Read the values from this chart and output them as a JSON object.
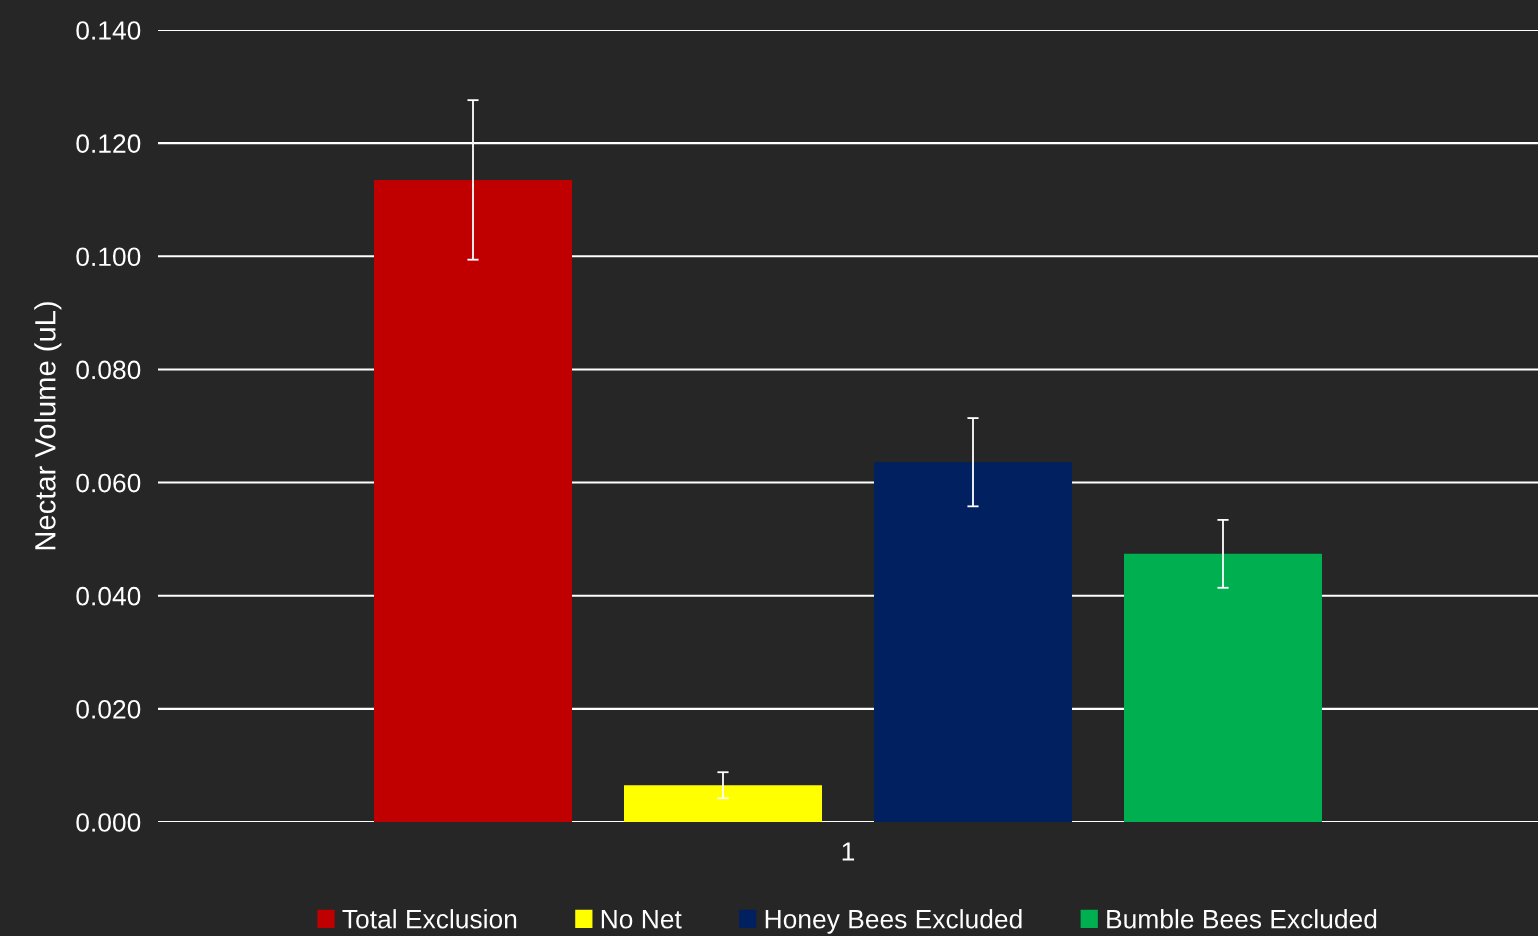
{
  "chart_data": {
    "type": "bar",
    "ylabel": "Nectar Volume (uL)",
    "categories": [
      "1"
    ],
    "series": [
      {
        "name": "Total Exclusion",
        "color": "#c00000",
        "values": [
          0.1135
        ],
        "errors": [
          0.0141
        ]
      },
      {
        "name": "No Net",
        "color": "#ffff00",
        "values": [
          0.0065
        ],
        "errors": [
          0.0023
        ]
      },
      {
        "name": "Honey Bees Excluded",
        "color": "#002060",
        "values": [
          0.0636
        ],
        "errors": [
          0.0078
        ]
      },
      {
        "name": "Bumble Bees Excluded",
        "color": "#00b050",
        "values": [
          0.0474
        ],
        "errors": [
          0.006
        ]
      }
    ],
    "ylim": [
      0,
      0.14
    ],
    "yticks": [
      {
        "value": 0,
        "label": "0.000"
      },
      {
        "value": 0.02,
        "label": "0.020"
      },
      {
        "value": 0.04,
        "label": "0.040"
      },
      {
        "value": 0.06,
        "label": "0.060"
      },
      {
        "value": 0.08,
        "label": "0.080"
      },
      {
        "value": 0.1,
        "label": "0.100"
      },
      {
        "value": 0.12,
        "label": "0.120"
      },
      {
        "value": 0.14,
        "label": "0.140"
      }
    ],
    "grid": "y",
    "legend": "bottom"
  }
}
